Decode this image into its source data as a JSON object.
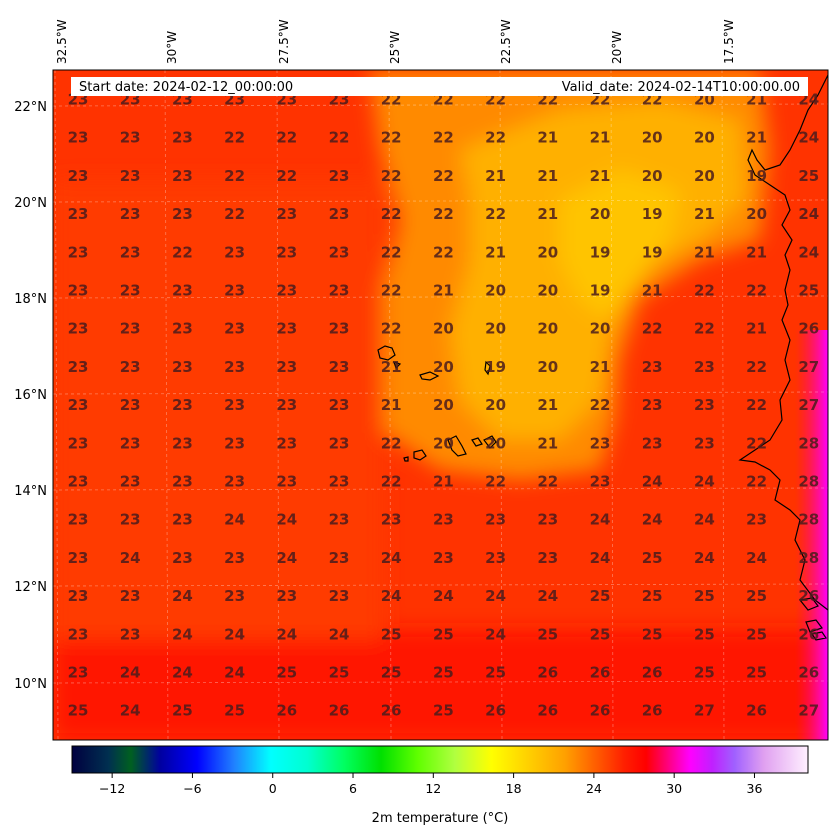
{
  "header": {
    "start_date": "Start date: 2024-02-12_00:00:00",
    "valid_date": "Valid_date: 2024-02-14T10:00:00.00"
  },
  "lon_labels": [
    "32.5°W",
    "30°W",
    "27.5°W",
    "25°W",
    "22.5°W",
    "20°W",
    "17.5°W"
  ],
  "lat_labels": [
    "22°N",
    "20°N",
    "18°N",
    "16°N",
    "14°N",
    "12°N",
    "10°N"
  ],
  "colorbar": {
    "label": "2m temperature (°C)",
    "ticks": [
      "−12",
      "−6",
      "0",
      "6",
      "12",
      "18",
      "24",
      "30",
      "36"
    ],
    "tick_values": [
      -12,
      -6,
      0,
      6,
      12,
      18,
      24,
      30,
      36
    ],
    "range": [
      -15,
      40
    ]
  },
  "grid_values": [
    [
      "23",
      "23",
      "23",
      "23",
      "23",
      "23",
      "22",
      "22",
      "22",
      "22",
      "22",
      "22",
      "20",
      "21",
      "24"
    ],
    [
      "23",
      "23",
      "23",
      "22",
      "22",
      "22",
      "22",
      "22",
      "22",
      "21",
      "21",
      "20",
      "20",
      "21",
      "24"
    ],
    [
      "23",
      "23",
      "23",
      "22",
      "22",
      "23",
      "22",
      "22",
      "21",
      "21",
      "21",
      "20",
      "20",
      "19",
      "25"
    ],
    [
      "23",
      "23",
      "23",
      "22",
      "23",
      "23",
      "22",
      "22",
      "22",
      "21",
      "20",
      "19",
      "21",
      "20",
      "24"
    ],
    [
      "23",
      "23",
      "22",
      "23",
      "23",
      "23",
      "22",
      "22",
      "21",
      "20",
      "19",
      "19",
      "21",
      "21",
      "24"
    ],
    [
      "23",
      "23",
      "23",
      "23",
      "23",
      "23",
      "22",
      "21",
      "20",
      "20",
      "19",
      "21",
      "22",
      "22",
      "25"
    ],
    [
      "23",
      "23",
      "23",
      "23",
      "23",
      "23",
      "22",
      "20",
      "20",
      "20",
      "20",
      "22",
      "22",
      "21",
      "26"
    ],
    [
      "23",
      "23",
      "23",
      "23",
      "23",
      "23",
      "21",
      "20",
      "19",
      "20",
      "21",
      "23",
      "23",
      "22",
      "27"
    ],
    [
      "23",
      "23",
      "23",
      "23",
      "23",
      "23",
      "21",
      "20",
      "20",
      "21",
      "22",
      "23",
      "23",
      "22",
      "27"
    ],
    [
      "23",
      "23",
      "23",
      "23",
      "23",
      "23",
      "22",
      "20",
      "20",
      "21",
      "23",
      "23",
      "23",
      "22",
      "28"
    ],
    [
      "23",
      "23",
      "23",
      "23",
      "23",
      "23",
      "22",
      "21",
      "22",
      "22",
      "23",
      "24",
      "24",
      "22",
      "28"
    ],
    [
      "23",
      "23",
      "23",
      "24",
      "24",
      "23",
      "23",
      "23",
      "23",
      "23",
      "24",
      "24",
      "24",
      "23",
      "28"
    ],
    [
      "23",
      "24",
      "23",
      "23",
      "24",
      "23",
      "24",
      "23",
      "23",
      "23",
      "24",
      "25",
      "24",
      "24",
      "28"
    ],
    [
      "23",
      "23",
      "24",
      "23",
      "23",
      "23",
      "24",
      "24",
      "24",
      "24",
      "25",
      "25",
      "25",
      "25",
      "26"
    ],
    [
      "23",
      "23",
      "24",
      "24",
      "24",
      "24",
      "25",
      "25",
      "24",
      "25",
      "25",
      "25",
      "25",
      "25",
      "26"
    ],
    [
      "23",
      "24",
      "24",
      "24",
      "25",
      "25",
      "25",
      "25",
      "25",
      "26",
      "26",
      "26",
      "25",
      "25",
      "26"
    ],
    [
      "25",
      "24",
      "25",
      "25",
      "26",
      "26",
      "26",
      "25",
      "26",
      "26",
      "26",
      "26",
      "27",
      "26",
      "27"
    ]
  ],
  "colors": {
    "field_base": "#ff3a00",
    "field_warm": "#ff1000",
    "field_cool": "#ff9800",
    "field_coolest": "#ffbb00",
    "magenta": "#ff00ee"
  }
}
